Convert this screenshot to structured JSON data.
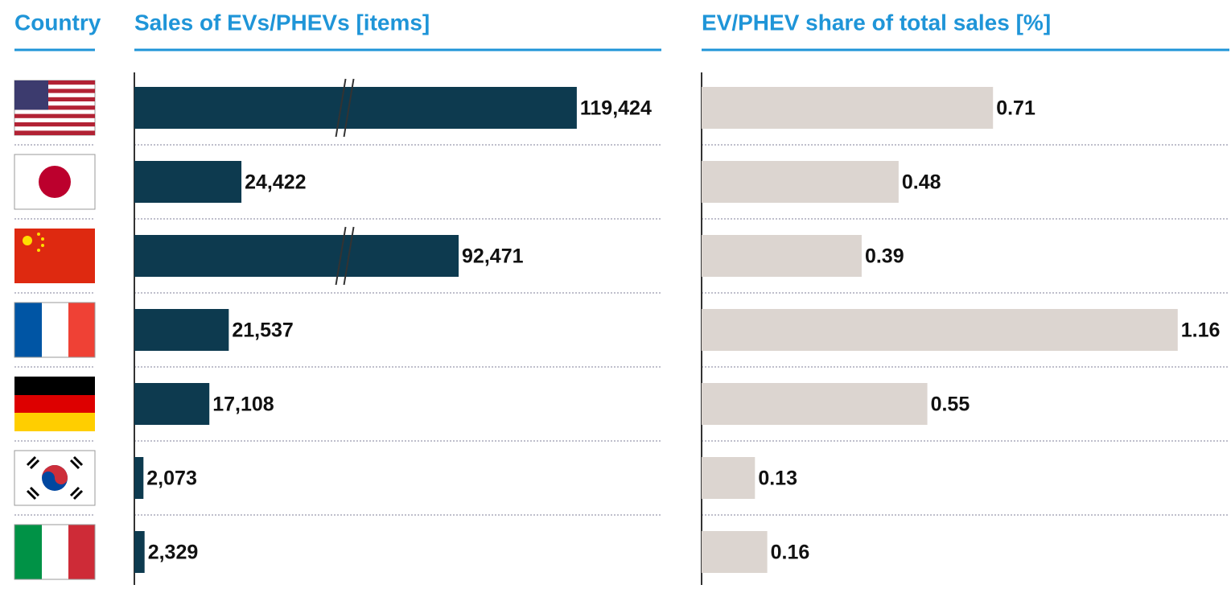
{
  "header": {
    "country": "Country"
  },
  "chart_data": [
    {
      "type": "hbar",
      "title": "Sales of EVs/PHEVs [items]",
      "color": "#0d3a4f",
      "values": [
        119424,
        24422,
        92471,
        21537,
        17108,
        2073,
        2329
      ],
      "value_labels": [
        "119,424",
        "24,422",
        "92,471",
        "21,537",
        "17,108",
        "2,073",
        "2,329"
      ],
      "xlim": [
        0,
        140000
      ],
      "xbreak": [
        48000,
        66500
      ]
    },
    {
      "type": "hbar",
      "title": "EV/PHEV share of total sales [%]",
      "color": "#dcd5d0",
      "values": [
        0.71,
        0.48,
        0.39,
        1.16,
        0.55,
        0.13,
        0.16
      ],
      "xlim": [
        0,
        1.28
      ]
    }
  ]
}
